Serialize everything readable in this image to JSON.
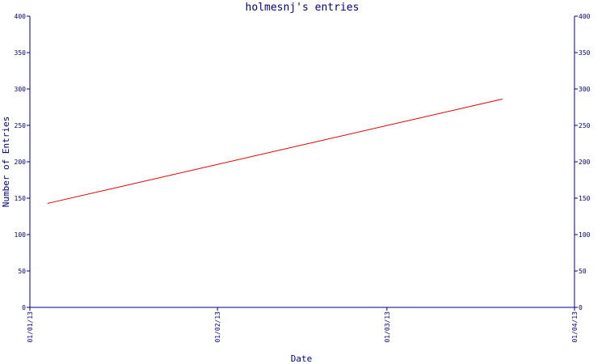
{
  "chart_data": {
    "type": "line",
    "title": "holmesnj's entries",
    "xlabel": "Date",
    "ylabel": "Number of Entries",
    "x_ticks": [
      "01/01/13",
      "01/02/13",
      "01/03/13",
      "01/04/13"
    ],
    "x_domain": [
      "2013-01-01",
      "2013-04-01"
    ],
    "y_ticks": [
      "0",
      "50",
      "100",
      "150",
      "200",
      "250",
      "300",
      "350",
      "400"
    ],
    "ylim": [
      0,
      400
    ],
    "right_axis_mirrored": true,
    "grid": false,
    "series": [
      {
        "color": "#dd0000",
        "points": [
          {
            "x": "2013-01-04",
            "y": 143
          },
          {
            "x": "2013-03-20",
            "y": 286
          }
        ]
      }
    ],
    "colors": {
      "axis": "#000080",
      "text": "#000080",
      "line": "#dd0000"
    }
  }
}
